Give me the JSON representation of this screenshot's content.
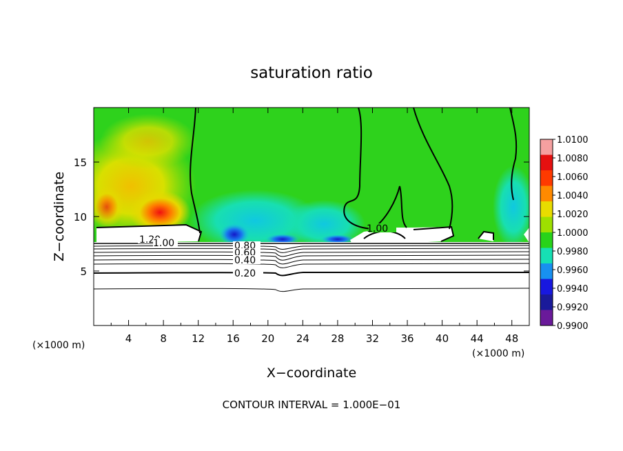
{
  "chart_data": {
    "type": "heatmap",
    "title": "saturation ratio",
    "xlabel": "X−coordinate",
    "ylabel": "Z−coordinate",
    "x_unit_left": "(×1000 m)",
    "x_unit_right": "(×1000 m)",
    "xlim": [
      0,
      50
    ],
    "ylim": [
      0,
      20
    ],
    "x_ticks": [
      4,
      8,
      12,
      16,
      20,
      24,
      28,
      32,
      36,
      40,
      44,
      48
    ],
    "y_ticks": [
      5,
      10,
      15
    ],
    "footer": "CONTOUR INTERVAL = 1.000E−01",
    "colorbar": {
      "labels": [
        "1.0100",
        "1.0080",
        "1.0060",
        "1.0040",
        "1.0020",
        "1.0000",
        "0.9980",
        "0.9960",
        "0.9940",
        "0.9920",
        "0.9900"
      ],
      "colors": [
        "#f5a0a0",
        "#e51010",
        "#ff3a00",
        "#ff8a00",
        "#e8dc00",
        "#9ee000",
        "#28d31a",
        "#16e0b4",
        "#1890f0",
        "#1818e0",
        "#1a1a9a",
        "#6a1a9a"
      ]
    },
    "contour_labels": [
      "1.20",
      "1.00",
      "1.00",
      "0.80",
      "0.60",
      "0.40",
      "0.20"
    ]
  }
}
